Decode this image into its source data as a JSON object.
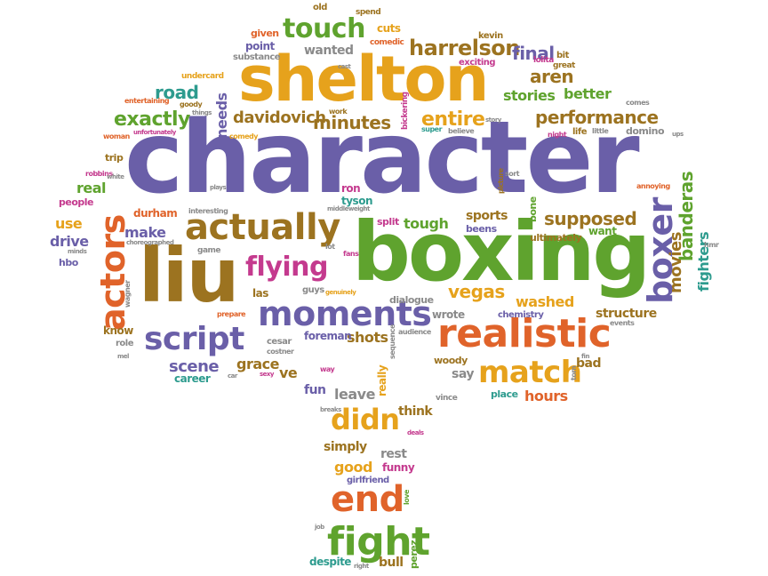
{
  "palette": {
    "purple": "#6a5fa8",
    "orange": "#e0632a",
    "gold": "#e6a21c",
    "green": "#5fa32e",
    "brown": "#9c7320",
    "teal": "#2d9b8e",
    "magenta": "#c43a8e",
    "gray": "#8a8a8a"
  },
  "words": {
    "character": "character",
    "boxing": "boxing",
    "shelton": "shelton",
    "liu": "liu",
    "realistic": "realistic",
    "actually": "actually",
    "boxer": "boxer",
    "actors": "actors",
    "fight": "fight",
    "end": "end",
    "didn": "didn",
    "match": "match",
    "script": "script",
    "moments": "moments",
    "flying": "flying",
    "touch": "touch",
    "harrelson": "harrelson",
    "final": "final",
    "performance": "performance",
    "davidovich": "davidovich",
    "minutes": "minutes",
    "exactly": "exactly",
    "road": "road",
    "needs": "needs",
    "aren": "aren",
    "stories": "stories",
    "better": "better",
    "entire": "entire",
    "supposed": "supposed",
    "sports": "sports",
    "tough": "tough",
    "vegas": "vegas",
    "washed": "washed",
    "movies": "movies",
    "fighters": "fighters",
    "banderas": "banderas",
    "scene": "scene",
    "grace": "grace",
    "shots": "shots",
    "foreman": "foreman",
    "hours": "hours",
    "say": "say",
    "fun": "fun",
    "leave": "leave",
    "think": "think",
    "good": "good",
    "simply": "simply",
    "rest": "rest",
    "funny": "funny",
    "girlfriend": "girlfriend",
    "despite": "despite",
    "bull": "bull",
    "perez": "perez",
    "make": "make",
    "use": "use",
    "drive": "drive",
    "real": "real",
    "durham": "durham",
    "ron": "ron",
    "tyson": "tyson",
    "split": "split",
    "beens": "beens",
    "bone": "bone",
    "want": "want",
    "ultimately": "ultimately",
    "structure": "structure",
    "chemistry": "chemistry",
    "wrote": "wrote",
    "dialogue": "dialogue",
    "woody": "woody",
    "bad": "bad",
    "place": "place",
    "vince": "vince",
    "really": "really",
    "know": "know",
    "role": "role",
    "career": "career",
    "ve": "ve",
    "cesar": "cesar",
    "las": "las",
    "guys": "guys",
    "hbo": "hbo",
    "people": "people",
    "trip": "trip",
    "wanted": "wanted",
    "point": "point",
    "given": "given",
    "substance": "substance",
    "cuts": "cuts",
    "comedic": "comedic",
    "kevin": "kevin",
    "exciting": "exciting",
    "lolita": "lolita",
    "bit": "bit",
    "great": "great",
    "old": "old",
    "spend": "spend",
    "undercard": "undercard",
    "entertaining": "entertaining",
    "goody": "goody",
    "things": "things",
    "woman": "woman",
    "unfortunately": "unfortunately",
    "comedy": "comedy",
    "work": "work",
    "cast": "cast",
    "bickering": "bickering",
    "super": "super",
    "believe": "believe",
    "story": "story",
    "night": "night",
    "life": "life",
    "little": "little",
    "comes": "comes",
    "domino": "domino",
    "robbins": "robbins",
    "white": "white",
    "plays": "plays",
    "interesting": "interesting",
    "middleweight": "middleweight",
    "picture": "picture",
    "sort": "sort",
    "annoying": "annoying",
    "game": "game",
    "lot": "lot",
    "fans": "fans",
    "choreographed": "choreographed",
    "wagner": "wagner",
    "minds": "minds",
    "prepare": "prepare",
    "genuinely": "genuinely",
    "events": "events",
    "audience": "audience",
    "sequence": "sequence",
    "costner": "costner",
    "way": "way",
    "sexy": "sexy",
    "car": "car",
    "tom": "tom",
    "fin": "fin",
    "love": "love",
    "job": "job",
    "right": "right",
    "tiny_ups": "ups",
    "hmr": "hmr",
    "deals": "deals",
    "breaks": "breaks",
    "mel": "mel"
  }
}
